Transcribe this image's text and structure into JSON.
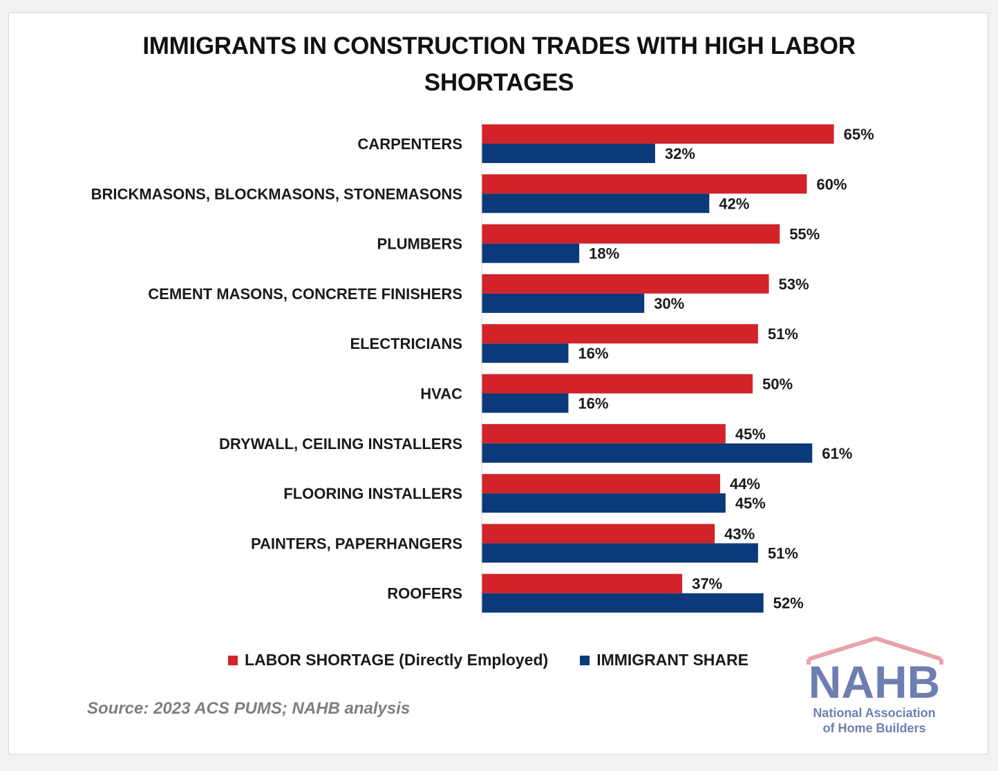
{
  "colors": {
    "labor": "#d2232a",
    "immigrant": "#0b3a7a",
    "logo_roof": "#e8a3a8",
    "logo_text": "#6e7eb0"
  },
  "chart_data": {
    "type": "bar",
    "orientation": "horizontal",
    "title_lines": [
      "IMMIGRANTS IN CONSTRUCTION TRADES WITH HIGH LABOR",
      "SHORTAGES"
    ],
    "categories": [
      "CARPENTERS",
      "BRICKMASONS, BLOCKMASONS, STONEMASONS",
      "PLUMBERS",
      "CEMENT MASONS, CONCRETE FINISHERS",
      "ELECTRICIANS",
      "HVAC",
      "DRYWALL, CEILING INSTALLERS",
      "FLOORING INSTALLERS",
      "PAINTERS, PAPERHANGERS",
      "ROOFERS"
    ],
    "series": [
      {
        "name": "LABOR SHORTAGE (Directly Employed)",
        "values": [
          65,
          60,
          55,
          53,
          51,
          50,
          45,
          44,
          43,
          37
        ]
      },
      {
        "name": "IMMIGRANT SHARE",
        "values": [
          32,
          42,
          18,
          30,
          16,
          16,
          61,
          45,
          51,
          52
        ]
      }
    ],
    "value_suffix": "%",
    "xlim": [
      0,
      100
    ],
    "grid": false,
    "legend_position": "bottom"
  },
  "source": "Source: 2023 ACS PUMS; NAHB analysis",
  "logo": {
    "mark": "NAHB",
    "line1": "National Association",
    "line2": "of Home Builders"
  }
}
